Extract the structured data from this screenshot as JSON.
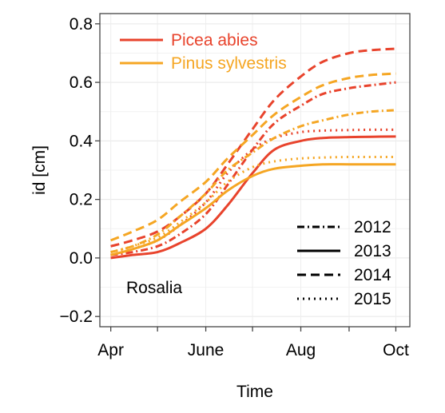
{
  "chart_data": {
    "type": "line",
    "xlabel": "Time",
    "ylabel": "id [cm]",
    "x_ticks": [
      "Apr",
      "June",
      "Aug",
      "Oct"
    ],
    "y_ticks": [
      "−0.2",
      "0.0",
      "0.2",
      "0.4",
      "0.6",
      "0.8"
    ],
    "xlim": [
      "2000-03-25",
      "2000-10-10"
    ],
    "ylim": [
      -0.235,
      0.835
    ],
    "grid": true,
    "annotation": "Rosalia",
    "species_legend": [
      {
        "name": "Picea abies",
        "color": "#e8432c"
      },
      {
        "name": "Pinus sylvestris",
        "color": "#f5a623"
      }
    ],
    "year_legend": [
      {
        "name": "2012",
        "dash": "dashdot"
      },
      {
        "name": "2013",
        "dash": "solid"
      },
      {
        "name": "2014",
        "dash": "dashed"
      },
      {
        "name": "2015",
        "dash": "dotted"
      }
    ],
    "x": [
      "2000-04-01",
      "2000-04-15",
      "2000-05-01",
      "2000-05-15",
      "2000-06-01",
      "2000-06-15",
      "2000-07-01",
      "2000-07-15",
      "2000-08-01",
      "2000-08-15",
      "2000-09-01",
      "2000-09-15",
      "2000-10-01"
    ],
    "series": [
      {
        "species": "Picea abies",
        "year": "2012",
        "color": "#e8432c",
        "dash": "dashdot",
        "values": [
          0.01,
          0.02,
          0.04,
          0.08,
          0.15,
          0.25,
          0.37,
          0.46,
          0.52,
          0.56,
          0.58,
          0.59,
          0.6
        ]
      },
      {
        "species": "Picea abies",
        "year": "2013",
        "color": "#e8432c",
        "dash": "solid",
        "values": [
          0.0,
          0.01,
          0.02,
          0.05,
          0.1,
          0.18,
          0.29,
          0.37,
          0.4,
          0.41,
          0.413,
          0.414,
          0.415
        ]
      },
      {
        "species": "Picea abies",
        "year": "2014",
        "color": "#e8432c",
        "dash": "dashed",
        "values": [
          0.04,
          0.06,
          0.09,
          0.14,
          0.22,
          0.32,
          0.44,
          0.54,
          0.62,
          0.67,
          0.7,
          0.71,
          0.715
        ]
      },
      {
        "species": "Picea abies",
        "year": "2015",
        "color": "#e8432c",
        "dash": "dotted",
        "values": [
          0.01,
          0.03,
          0.06,
          0.11,
          0.19,
          0.29,
          0.37,
          0.41,
          0.43,
          0.435,
          0.437,
          0.438,
          0.438
        ]
      },
      {
        "species": "Pinus sylvestris",
        "year": "2012",
        "color": "#f5a623",
        "dash": "dashdot",
        "values": [
          0.02,
          0.04,
          0.08,
          0.14,
          0.22,
          0.3,
          0.36,
          0.41,
          0.45,
          0.47,
          0.49,
          0.5,
          0.505
        ]
      },
      {
        "species": "Pinus sylvestris",
        "year": "2013",
        "color": "#f5a623",
        "dash": "solid",
        "values": [
          0.01,
          0.03,
          0.06,
          0.11,
          0.17,
          0.23,
          0.28,
          0.305,
          0.315,
          0.32,
          0.32,
          0.32,
          0.32
        ]
      },
      {
        "species": "Pinus sylvestris",
        "year": "2014",
        "color": "#f5a623",
        "dash": "dashed",
        "values": [
          0.06,
          0.09,
          0.13,
          0.19,
          0.26,
          0.34,
          0.42,
          0.49,
          0.55,
          0.59,
          0.615,
          0.625,
          0.63
        ]
      },
      {
        "species": "Pinus sylvestris",
        "year": "2015",
        "color": "#f5a623",
        "dash": "dotted",
        "values": [
          0.02,
          0.04,
          0.07,
          0.12,
          0.19,
          0.26,
          0.31,
          0.33,
          0.34,
          0.343,
          0.345,
          0.345,
          0.345
        ]
      }
    ]
  }
}
